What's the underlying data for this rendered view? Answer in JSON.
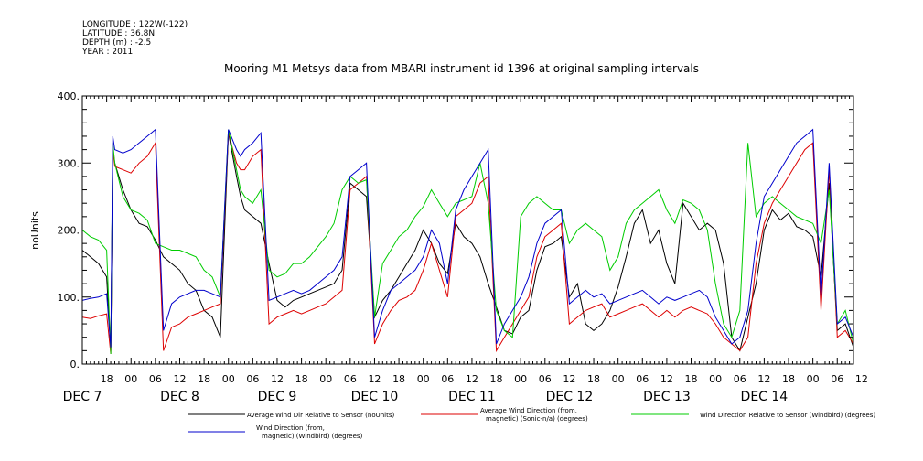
{
  "header": {
    "meta_lines": [
      "LONGITUDE : 122W(-122)",
      "LATITUDE : 36.8N",
      "DEPTH (m) : -2.5",
      "YEAR : 2011"
    ],
    "title": "Mooring M1 Metsys data from MBARI instrument id 1396 at original sampling intervals"
  },
  "chart_data": {
    "type": "line",
    "title": "Mooring M1 Metsys data from MBARI instrument id 1396 at original sampling intervals",
    "ylabel": "noUnits",
    "xlabel": "",
    "ylim": [
      0,
      400
    ],
    "y_ticks": [
      "0.",
      "100.",
      "200.",
      "300.",
      "400."
    ],
    "xlim_hours": [
      12,
      202
    ],
    "x_hour_ticks": [
      "18",
      "00",
      "06",
      "12",
      "18",
      "00",
      "06",
      "12",
      "18",
      "00",
      "06",
      "12",
      "18",
      "00",
      "06",
      "12",
      "18",
      "00",
      "06",
      "12",
      "18",
      "00",
      "06",
      "12",
      "18",
      "00",
      "06",
      "12",
      "18",
      "00",
      "06",
      "12"
    ],
    "day_labels": [
      "DEC  7",
      "DEC  8",
      "DEC  9",
      "DEC 10",
      "DEC 11",
      "DEC 12",
      "DEC 13",
      "DEC 14"
    ],
    "grid": false,
    "legend_position": "bottom",
    "series": [
      {
        "name": "Average Wind Dir Relative to Sensor (noUnits)",
        "color": "#000000",
        "x": [
          12,
          14,
          16,
          18,
          19,
          19.5,
          20,
          22,
          24,
          26,
          28,
          30,
          32,
          34,
          36,
          38,
          40,
          42,
          44,
          46,
          48,
          50,
          51,
          52,
          54,
          56,
          58,
          60,
          62,
          64,
          66,
          68,
          70,
          72,
          74,
          76,
          78,
          80,
          82,
          84,
          86,
          88,
          90,
          92,
          94,
          96,
          98,
          100,
          102,
          104,
          106,
          108,
          110,
          112,
          114,
          116,
          118,
          120,
          122,
          124,
          126,
          128,
          130,
          132,
          134,
          136,
          138,
          140,
          142,
          144,
          146,
          148,
          150,
          152,
          154,
          156,
          158,
          160,
          162,
          164,
          166,
          168,
          170,
          172,
          174,
          176,
          178,
          180,
          182,
          184,
          186,
          188,
          190,
          192,
          194,
          196,
          198,
          200,
          202
        ],
        "y": [
          170,
          160,
          150,
          130,
          20,
          320,
          300,
          260,
          230,
          210,
          205,
          185,
          160,
          150,
          140,
          120,
          110,
          80,
          70,
          40,
          345,
          280,
          250,
          230,
          220,
          210,
          150,
          95,
          85,
          95,
          100,
          105,
          110,
          115,
          120,
          140,
          270,
          260,
          250,
          70,
          95,
          110,
          130,
          150,
          170,
          200,
          180,
          150,
          135,
          210,
          190,
          180,
          160,
          120,
          85,
          50,
          45,
          70,
          80,
          140,
          175,
          180,
          190,
          100,
          120,
          60,
          50,
          60,
          80,
          115,
          160,
          210,
          230,
          180,
          200,
          150,
          120,
          240,
          220,
          200,
          210,
          200,
          150,
          40,
          20,
          70,
          120,
          200,
          230,
          215,
          225,
          205,
          200,
          190,
          130,
          270,
          50,
          60,
          25
        ]
      },
      {
        "name": "Average Wind Direction (from, magnetic) (Sonic-n/a) (degrees)",
        "color": "#dd0000",
        "x": [
          12,
          14,
          16,
          18,
          19,
          19.5,
          20,
          22,
          24,
          26,
          28,
          30,
          32,
          34,
          36,
          38,
          40,
          42,
          44,
          46,
          48,
          50,
          51,
          52,
          54,
          56,
          58,
          60,
          62,
          64,
          66,
          68,
          70,
          72,
          74,
          76,
          78,
          80,
          82,
          84,
          86,
          88,
          90,
          92,
          94,
          96,
          98,
          100,
          102,
          104,
          106,
          108,
          110,
          112,
          114,
          116,
          118,
          120,
          122,
          124,
          126,
          128,
          130,
          132,
          134,
          136,
          138,
          140,
          142,
          144,
          146,
          148,
          150,
          152,
          154,
          156,
          158,
          160,
          162,
          164,
          166,
          168,
          170,
          172,
          174,
          176,
          178,
          180,
          182,
          184,
          186,
          188,
          190,
          192,
          194,
          196,
          198,
          200,
          202
        ],
        "y": [
          70,
          68,
          72,
          75,
          15,
          320,
          295,
          290,
          285,
          300,
          310,
          330,
          20,
          55,
          60,
          70,
          75,
          80,
          85,
          90,
          345,
          300,
          290,
          290,
          310,
          320,
          60,
          70,
          75,
          80,
          75,
          80,
          85,
          90,
          100,
          110,
          260,
          270,
          280,
          30,
          60,
          80,
          95,
          100,
          110,
          140,
          180,
          140,
          100,
          220,
          230,
          240,
          270,
          280,
          20,
          40,
          60,
          80,
          100,
          160,
          190,
          200,
          210,
          60,
          70,
          80,
          85,
          90,
          70,
          75,
          80,
          85,
          90,
          80,
          70,
          80,
          70,
          80,
          85,
          80,
          75,
          60,
          40,
          30,
          20,
          40,
          150,
          210,
          240,
          260,
          280,
          300,
          320,
          330,
          80,
          290,
          40,
          50,
          30
        ]
      },
      {
        "name": "Wind Direction Relative to Sensor (Windbird) (degrees)",
        "color": "#00cc00",
        "x": [
          12,
          14,
          16,
          18,
          19,
          19.5,
          20,
          22,
          24,
          26,
          28,
          30,
          32,
          34,
          36,
          38,
          40,
          42,
          44,
          46,
          48,
          50,
          51,
          52,
          54,
          56,
          58,
          60,
          62,
          64,
          66,
          68,
          70,
          72,
          74,
          76,
          78,
          80,
          82,
          84,
          86,
          88,
          90,
          92,
          94,
          96,
          98,
          100,
          102,
          104,
          106,
          108,
          110,
          112,
          114,
          116,
          118,
          120,
          122,
          124,
          126,
          128,
          130,
          132,
          134,
          136,
          138,
          140,
          142,
          144,
          146,
          148,
          150,
          152,
          154,
          156,
          158,
          160,
          162,
          164,
          166,
          168,
          170,
          172,
          174,
          176,
          178,
          180,
          182,
          184,
          186,
          188,
          190,
          192,
          194,
          196,
          198,
          200,
          202
        ],
        "y": [
          200,
          190,
          185,
          170,
          15,
          330,
          300,
          250,
          230,
          225,
          215,
          180,
          175,
          170,
          170,
          165,
          160,
          140,
          130,
          100,
          350,
          290,
          260,
          250,
          240,
          260,
          140,
          130,
          135,
          150,
          150,
          160,
          175,
          190,
          210,
          260,
          280,
          270,
          275,
          70,
          150,
          170,
          190,
          200,
          220,
          235,
          260,
          240,
          220,
          240,
          245,
          250,
          300,
          240,
          80,
          50,
          40,
          220,
          240,
          250,
          240,
          230,
          230,
          180,
          200,
          210,
          200,
          190,
          140,
          160,
          210,
          230,
          240,
          250,
          260,
          230,
          210,
          245,
          240,
          230,
          200,
          120,
          60,
          40,
          80,
          330,
          220,
          240,
          250,
          240,
          230,
          220,
          215,
          210,
          180,
          260,
          60,
          80,
          30
        ]
      },
      {
        "name": "Wind Direction (from, magnetic) (Windbird) (degrees)",
        "color": "#0000cc",
        "x": [
          12,
          14,
          16,
          18,
          19,
          19.5,
          20,
          22,
          24,
          26,
          28,
          30,
          32,
          34,
          36,
          38,
          40,
          42,
          44,
          46,
          48,
          50,
          51,
          52,
          54,
          56,
          58,
          60,
          62,
          64,
          66,
          68,
          70,
          72,
          74,
          76,
          78,
          80,
          82,
          84,
          86,
          88,
          90,
          92,
          94,
          96,
          98,
          100,
          102,
          104,
          106,
          108,
          110,
          112,
          114,
          116,
          118,
          120,
          122,
          124,
          126,
          128,
          130,
          132,
          134,
          136,
          138,
          140,
          142,
          144,
          146,
          148,
          150,
          152,
          154,
          156,
          158,
          160,
          162,
          164,
          166,
          168,
          170,
          172,
          174,
          176,
          178,
          180,
          182,
          184,
          186,
          188,
          190,
          192,
          194,
          196,
          198,
          200,
          202
        ],
        "y": [
          95,
          98,
          100,
          105,
          25,
          340,
          320,
          315,
          320,
          330,
          340,
          350,
          50,
          90,
          100,
          105,
          110,
          110,
          105,
          100,
          350,
          320,
          310,
          320,
          330,
          345,
          95,
          100,
          105,
          110,
          105,
          110,
          120,
          130,
          140,
          160,
          280,
          290,
          300,
          40,
          80,
          110,
          120,
          130,
          140,
          160,
          200,
          180,
          120,
          230,
          260,
          280,
          300,
          320,
          30,
          60,
          80,
          100,
          130,
          180,
          210,
          220,
          230,
          90,
          100,
          110,
          100,
          105,
          90,
          95,
          100,
          105,
          110,
          100,
          90,
          100,
          95,
          100,
          105,
          110,
          100,
          70,
          50,
          30,
          40,
          80,
          180,
          250,
          270,
          290,
          310,
          330,
          340,
          350,
          100,
          300,
          60,
          70,
          40
        ]
      }
    ]
  }
}
